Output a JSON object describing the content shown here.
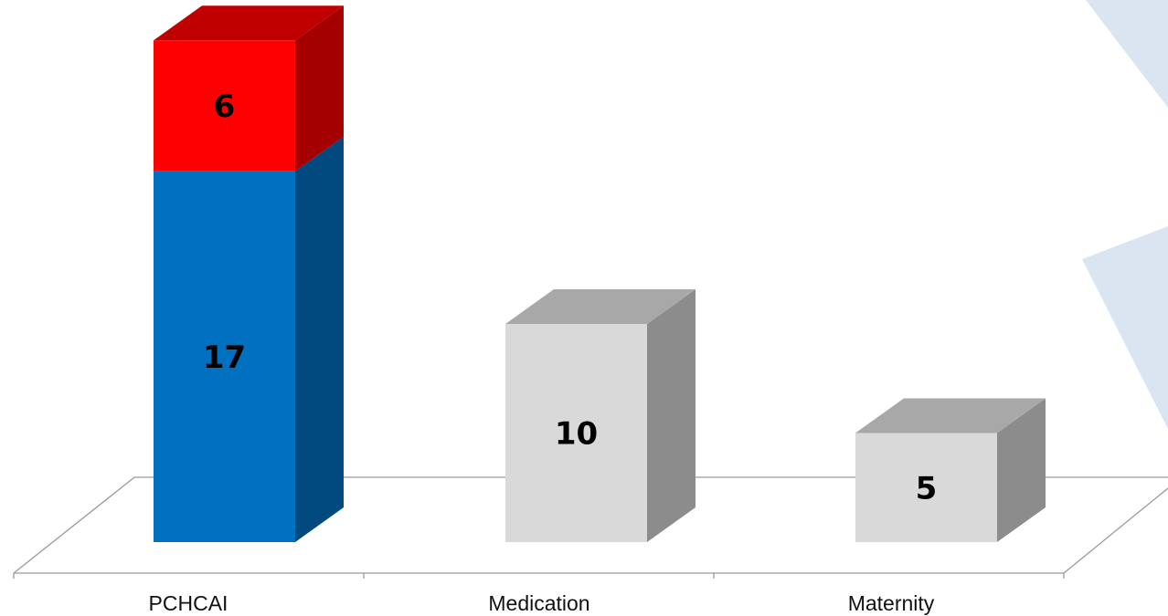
{
  "chart_data": {
    "type": "bar",
    "stacked": true,
    "three_d": true,
    "categories": [
      "PCHCAI",
      "Medication",
      "Maternity"
    ],
    "series": [
      {
        "values": [
          17,
          10,
          5
        ]
      },
      {
        "values": [
          6,
          0,
          0
        ]
      }
    ],
    "data_labels": [
      [
        "17",
        "10",
        "5"
      ],
      [
        "6",
        "",
        ""
      ]
    ],
    "ylim": [
      0,
      25
    ],
    "grid": false,
    "legend": "none",
    "title": "",
    "xlabel": "",
    "ylabel": "",
    "colors": {
      "base_highlight": "#0070c0",
      "base_highlight_side": "#004a80",
      "base_highlight_top": "#0a5ea8",
      "stack": "#ff0000",
      "stack_side": "#a50000",
      "stack_top": "#c00000",
      "base_default": "#d9d9d9",
      "base_default_side": "#8c8c8c",
      "base_default_top": "#a8a8a8",
      "axis": "#9a9a9a",
      "background_shape": "#dbe4f1"
    }
  }
}
